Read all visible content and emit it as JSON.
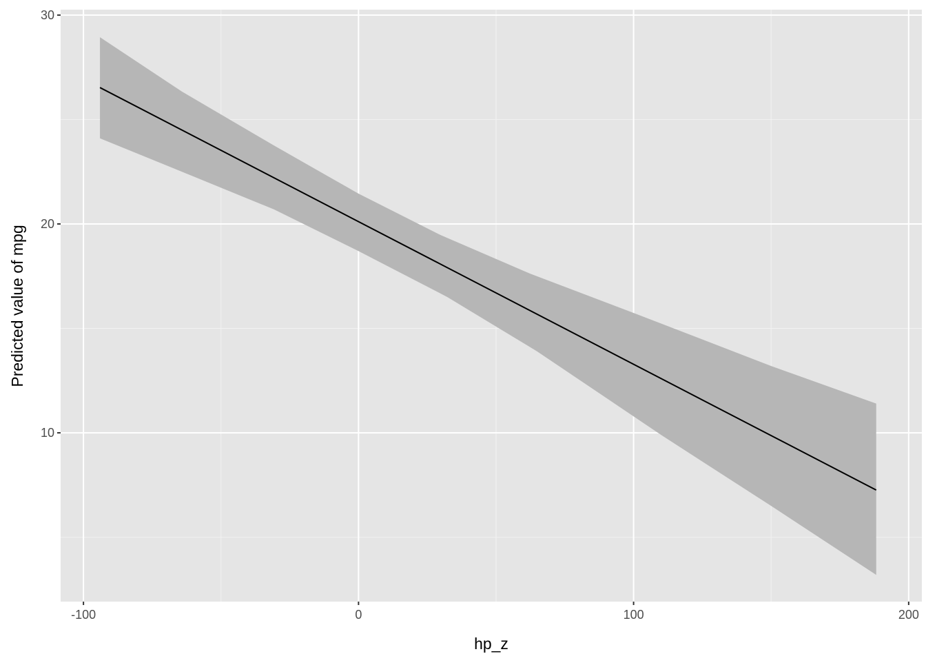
{
  "chart_data": {
    "type": "line",
    "title": "",
    "xlabel": "hp_z",
    "ylabel": "Predicted value of mpg",
    "xlim": [
      -108.3,
      204.8
    ],
    "ylim": [
      1.92,
      30.26
    ],
    "grid": true,
    "x_ticks": [
      -100,
      0,
      100,
      200
    ],
    "x_tick_labels": [
      "-100",
      "0",
      "100",
      "200"
    ],
    "y_ticks": [
      10,
      20,
      30
    ],
    "y_tick_labels": [
      "10",
      "20",
      "30"
    ],
    "x_minor": [
      -50,
      50,
      150
    ],
    "y_minor": [
      5,
      15,
      25
    ],
    "series": [
      {
        "x": [
          -94,
          188.2
        ],
        "y": [
          26.53,
          7.26
        ],
        "color": "#000000"
      }
    ],
    "ribbon": {
      "fill": "#b6b6b6",
      "upper": {
        "x": [
          -94,
          -64.2,
          -30.8,
          0,
          29.8,
          62.4,
          100,
          150,
          188.2
        ],
        "y": [
          28.94,
          26.34,
          23.76,
          21.45,
          19.47,
          17.62,
          15.74,
          13.2,
          11.4
        ]
      },
      "lower": {
        "x": [
          -94,
          -64.2,
          -30.8,
          0,
          32.3,
          64.9,
          110,
          150,
          188.2
        ],
        "y": [
          24.1,
          22.5,
          20.7,
          18.7,
          16.5,
          13.9,
          9.9,
          6.5,
          3.2
        ]
      }
    },
    "panel_background": "#e5e5e5"
  }
}
